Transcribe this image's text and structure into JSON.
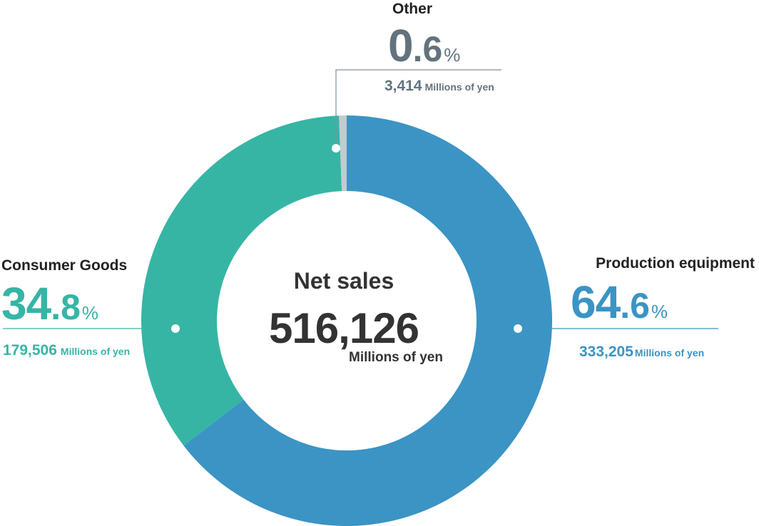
{
  "chart_data": {
    "type": "pie",
    "donut": true,
    "center": {
      "title": "Net sales",
      "value": "516,126",
      "unit": "Millions of yen"
    },
    "unit": "Millions of yen",
    "segments": [
      {
        "key": "production",
        "name": "Production equipment",
        "percent_int": "64",
        "percent_dec": ".6",
        "percent_sign": "%",
        "percent": 64.6,
        "amount": "333,205",
        "value": 333205,
        "color": "#3b94c4"
      },
      {
        "key": "consumer",
        "name": "Consumer Goods",
        "percent_int": "34",
        "percent_dec": ".8",
        "percent_sign": "%",
        "percent": 34.8,
        "amount": "179,506",
        "value": 179506,
        "color": "#36b5a5"
      },
      {
        "key": "other",
        "name": "Other",
        "percent_int": "0",
        "percent_dec": ".6",
        "percent_sign": "%",
        "percent": 0.6,
        "amount": "3,414",
        "value": 3414,
        "color": "#c3cbcf"
      }
    ],
    "label_colors": {
      "production": "#3b94c4",
      "consumer": "#36b5a5",
      "other": "#63737d"
    },
    "leader_line_color": "#8aa0aa"
  }
}
